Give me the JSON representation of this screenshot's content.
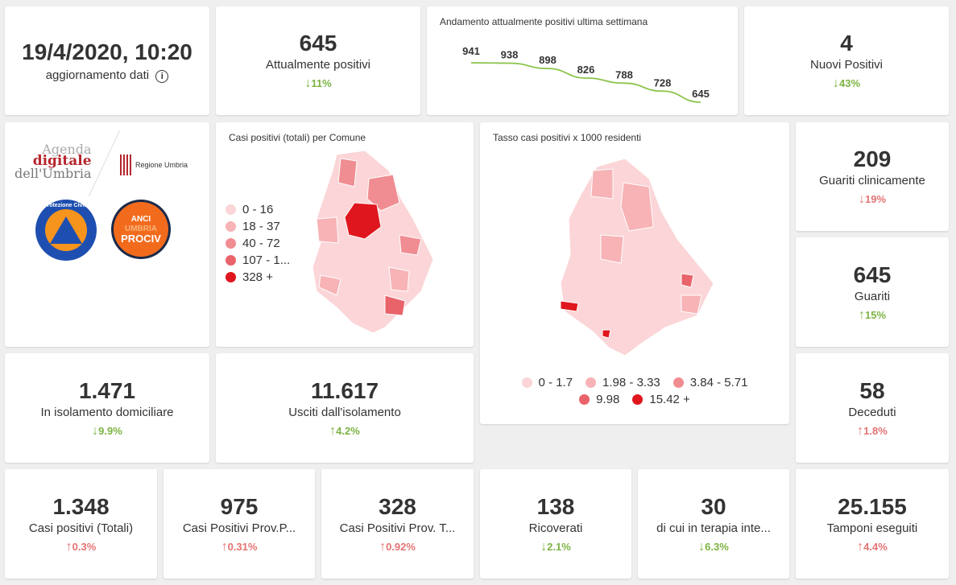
{
  "update": {
    "datetime": "19/4/2020, 10:20",
    "label": "aggiornamento dati",
    "info_icon": "info-icon"
  },
  "kpis": {
    "attualmente_positivi": {
      "value": "645",
      "label": "Attualmente positivi",
      "delta": "11%",
      "dir": "down"
    },
    "nuovi_positivi": {
      "value": "4",
      "label": "Nuovi Positivi",
      "delta": "43%",
      "dir": "down"
    },
    "guariti_clinicamente": {
      "value": "209",
      "label": "Guariti clinicamente",
      "delta": "19%",
      "dir": "down-red"
    },
    "guariti": {
      "value": "645",
      "label": "Guariti",
      "delta": "15%",
      "dir": "up-green"
    },
    "isolamento": {
      "value": "1.471",
      "label": "In isolamento domiciliare",
      "delta": "9.9%",
      "dir": "down"
    },
    "usciti": {
      "value": "11.617",
      "label": "Usciti dall'isolamento",
      "delta": "4.2%",
      "dir": "up-green"
    },
    "deceduti": {
      "value": "58",
      "label": "Deceduti",
      "delta": "1.8%",
      "dir": "up"
    },
    "casi_totali": {
      "value": "1.348",
      "label": "Casi positivi (Totali)",
      "delta": "0.3%",
      "dir": "up"
    },
    "prov_pg": {
      "value": "975",
      "label": "Casi Positivi Prov.P...",
      "delta": "0.31%",
      "dir": "up"
    },
    "prov_tr": {
      "value": "328",
      "label": "Casi Positivi Prov. T...",
      "delta": "0.92%",
      "dir": "up"
    },
    "ricoverati": {
      "value": "138",
      "label": "Ricoverati",
      "delta": "2.1%",
      "dir": "down"
    },
    "terapia": {
      "value": "30",
      "label": "di cui in terapia inte...",
      "delta": "6.3%",
      "dir": "down"
    },
    "tamponi": {
      "value": "25.155",
      "label": "Tamponi eseguiti",
      "delta": "4.4%",
      "dir": "up"
    }
  },
  "logos": {
    "agenda": [
      "Agenda",
      "digitale",
      "dell'Umbria"
    ],
    "regione": "Regione Umbria",
    "protezione": "Protezione Civile",
    "anci": [
      "ANCI",
      "UMBRIA",
      "PROCIV"
    ]
  },
  "chart_data": {
    "type": "line",
    "title": "Andamento attualmente positivi ultima settimana",
    "values": [
      941,
      938,
      898,
      826,
      788,
      728,
      645
    ],
    "color": "#8bc34a"
  },
  "map1": {
    "title": "Casi positivi (totali) per Comune",
    "legend": [
      {
        "label": "0 - 16",
        "color": "#fbd5d7"
      },
      {
        "label": "18 - 37",
        "color": "#f7b3b6"
      },
      {
        "label": "40 - 72",
        "color": "#f08d92"
      },
      {
        "label": "107 - 1...",
        "color": "#e9636a"
      },
      {
        "label": "328 +",
        "color": "#e0161e"
      }
    ]
  },
  "map2": {
    "title": "Tasso casi positivi x 1000 residenti",
    "legend": [
      {
        "label": "0 - 1.7",
        "color": "#fbd5d7"
      },
      {
        "label": "1.98 - 3.33",
        "color": "#f7b3b6"
      },
      {
        "label": "3.84 - 5.71",
        "color": "#f08d92"
      },
      {
        "label": "9.98",
        "color": "#e9636a"
      },
      {
        "label": "15.42 +",
        "color": "#e0161e"
      }
    ]
  }
}
